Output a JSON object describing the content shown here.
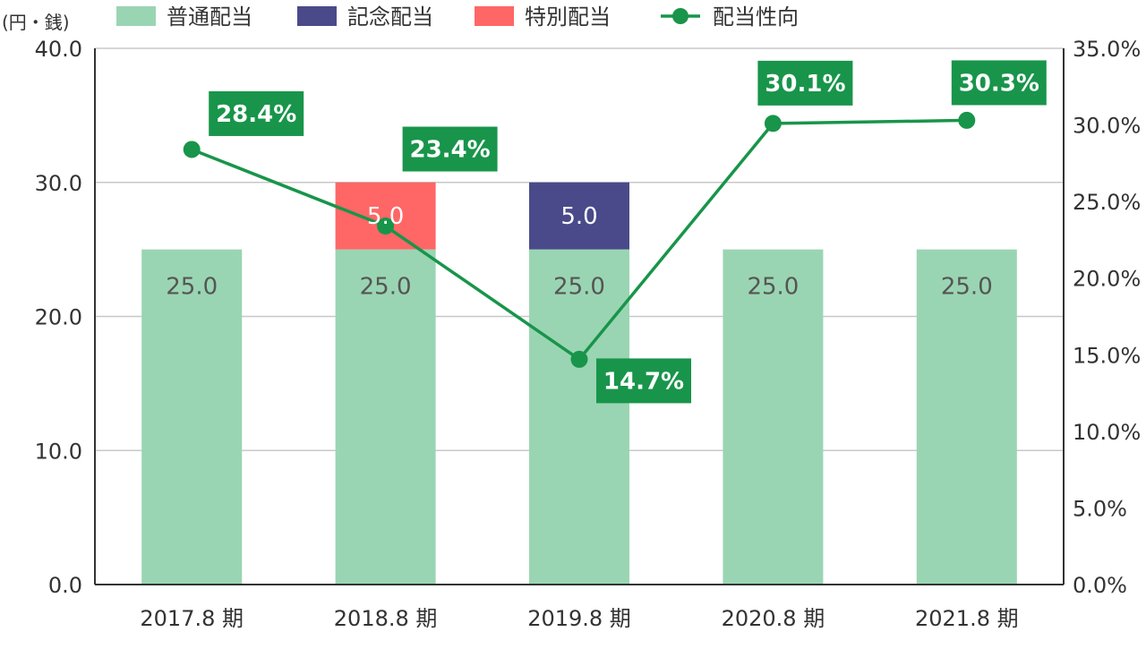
{
  "chart_data": {
    "type": "bar",
    "stacked": true,
    "y_unit": "(円・銭)",
    "categories": [
      "2017.8 期",
      "2018.8 期",
      "2019.8 期",
      "2020.8 期",
      "2021.8 期"
    ],
    "series": [
      {
        "name": "普通配当",
        "type": "bar",
        "axis": "left",
        "color": "#9ad5b3",
        "values": [
          25.0,
          25.0,
          25.0,
          25.0,
          25.0
        ],
        "labels": [
          "25.0",
          "25.0",
          "25.0",
          "25.0",
          "25.0"
        ],
        "label_color": "#555555"
      },
      {
        "name": "記念配当",
        "type": "bar",
        "axis": "left",
        "color": "#4a4a8a",
        "values": [
          0,
          0,
          5.0,
          0,
          0
        ],
        "labels": [
          "",
          "",
          "5.0",
          "",
          ""
        ],
        "label_color": "#ffffff"
      },
      {
        "name": "特別配当",
        "type": "bar",
        "axis": "left",
        "color": "#ff6666",
        "values": [
          0,
          5.0,
          0,
          0,
          0
        ],
        "labels": [
          "",
          "5.0",
          "",
          "",
          ""
        ],
        "label_color": "#ffffff"
      },
      {
        "name": "配当性向",
        "type": "line",
        "axis": "right",
        "color": "#18954a",
        "values": [
          28.4,
          23.4,
          14.7,
          30.1,
          30.3
        ],
        "labels": [
          "28.4%",
          "23.4%",
          "14.7%",
          "30.1%",
          "30.3%"
        ]
      }
    ],
    "y_left": {
      "lim": [
        0,
        40
      ],
      "ticks": [
        "0.0",
        "10.0",
        "20.0",
        "30.0",
        "40.0"
      ]
    },
    "y_right": {
      "lim": [
        0,
        35
      ],
      "ticks": [
        "0.0%",
        "5.0%",
        "10.0%",
        "15.0%",
        "20.0%",
        "25.0%",
        "30.0%",
        "35.0%"
      ]
    },
    "grid": true,
    "legend_position": "top"
  }
}
